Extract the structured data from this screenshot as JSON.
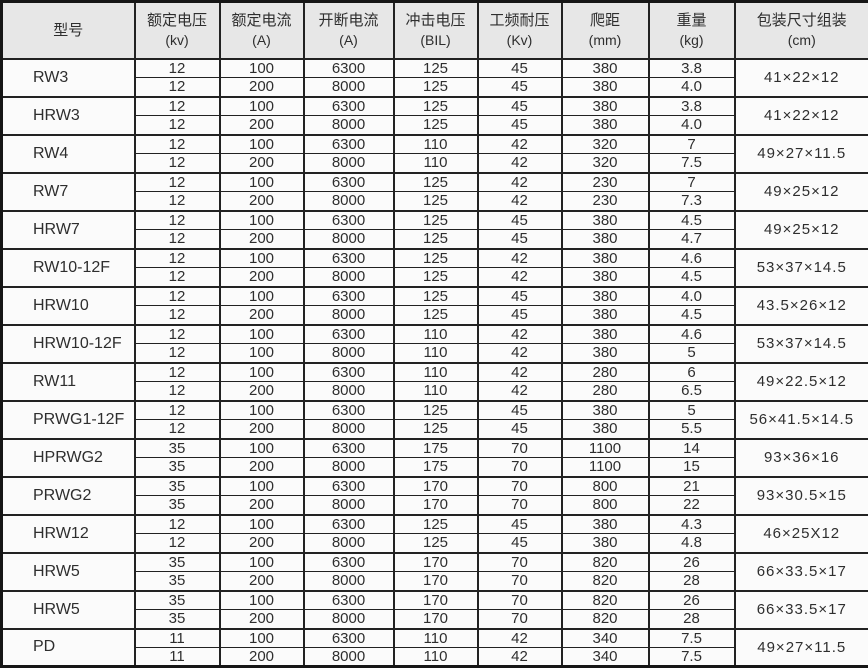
{
  "table": {
    "headers": [
      {
        "title": "型号",
        "unit": ""
      },
      {
        "title": "额定电压",
        "unit": "(kv)"
      },
      {
        "title": "额定电流",
        "unit": "(A)"
      },
      {
        "title": "开断电流",
        "unit": "(A)"
      },
      {
        "title": "冲击电压",
        "unit": "(BIL)"
      },
      {
        "title": "工频耐压",
        "unit": "(Kv)"
      },
      {
        "title": "爬距",
        "unit": "(mm)"
      },
      {
        "title": "重量",
        "unit": "(kg)"
      },
      {
        "title": "包装尺寸组装",
        "unit": "(cm)"
      }
    ],
    "groups": [
      {
        "model": "RW3",
        "rows": [
          [
            "12",
            "100",
            "6300",
            "125",
            "45",
            "380",
            "3.8"
          ],
          [
            "12",
            "200",
            "8000",
            "125",
            "45",
            "380",
            "4.0"
          ]
        ],
        "package": "41×22×12"
      },
      {
        "model": "HRW3",
        "rows": [
          [
            "12",
            "100",
            "6300",
            "125",
            "45",
            "380",
            "3.8"
          ],
          [
            "12",
            "200",
            "8000",
            "125",
            "45",
            "380",
            "4.0"
          ]
        ],
        "package": "41×22×12"
      },
      {
        "model": "RW4",
        "rows": [
          [
            "12",
            "100",
            "6300",
            "110",
            "42",
            "320",
            "7"
          ],
          [
            "12",
            "200",
            "8000",
            "110",
            "42",
            "320",
            "7.5"
          ]
        ],
        "package": "49×27×11.5"
      },
      {
        "model": "RW7",
        "rows": [
          [
            "12",
            "100",
            "6300",
            "125",
            "42",
            "230",
            "7"
          ],
          [
            "12",
            "200",
            "8000",
            "125",
            "42",
            "230",
            "7.3"
          ]
        ],
        "package": "49×25×12"
      },
      {
        "model": "HRW7",
        "rows": [
          [
            "12",
            "100",
            "6300",
            "125",
            "45",
            "380",
            "4.5"
          ],
          [
            "12",
            "200",
            "8000",
            "125",
            "45",
            "380",
            "4.7"
          ]
        ],
        "package": "49×25×12"
      },
      {
        "model": "RW10-12F",
        "rows": [
          [
            "12",
            "100",
            "6300",
            "125",
            "42",
            "380",
            "4.6"
          ],
          [
            "12",
            "200",
            "8000",
            "125",
            "42",
            "380",
            "4.5"
          ]
        ],
        "package": "53×37×14.5"
      },
      {
        "model": "HRW10",
        "rows": [
          [
            "12",
            "100",
            "6300",
            "125",
            "45",
            "380",
            "4.0"
          ],
          [
            "12",
            "200",
            "8000",
            "125",
            "45",
            "380",
            "4.5"
          ]
        ],
        "package": "43.5×26×12"
      },
      {
        "model": "HRW10-12F",
        "rows": [
          [
            "12",
            "100",
            "6300",
            "110",
            "42",
            "380",
            "4.6"
          ],
          [
            "12",
            "100",
            "8000",
            "110",
            "42",
            "380",
            "5"
          ]
        ],
        "package": "53×37×14.5"
      },
      {
        "model": "RW11",
        "rows": [
          [
            "12",
            "100",
            "6300",
            "110",
            "42",
            "280",
            "6"
          ],
          [
            "12",
            "200",
            "8000",
            "110",
            "42",
            "280",
            "6.5"
          ]
        ],
        "package": "49×22.5×12"
      },
      {
        "model": "PRWG1-12F",
        "rows": [
          [
            "12",
            "100",
            "6300",
            "125",
            "45",
            "380",
            "5"
          ],
          [
            "12",
            "200",
            "8000",
            "125",
            "45",
            "380",
            "5.5"
          ]
        ],
        "package": "56×41.5×14.5"
      },
      {
        "model": "HPRWG2",
        "rows": [
          [
            "35",
            "100",
            "6300",
            "175",
            "70",
            "1100",
            "14"
          ],
          [
            "35",
            "200",
            "8000",
            "175",
            "70",
            "1100",
            "15"
          ]
        ],
        "package": "93×36×16"
      },
      {
        "model": "PRWG2",
        "rows": [
          [
            "35",
            "100",
            "6300",
            "170",
            "70",
            "800",
            "21"
          ],
          [
            "35",
            "200",
            "8000",
            "170",
            "70",
            "800",
            "22"
          ]
        ],
        "package": "93×30.5×15"
      },
      {
        "model": "HRW12",
        "rows": [
          [
            "12",
            "100",
            "6300",
            "125",
            "45",
            "380",
            "4.3"
          ],
          [
            "12",
            "200",
            "8000",
            "125",
            "45",
            "380",
            "4.8"
          ]
        ],
        "package": "46×25X12"
      },
      {
        "model": "HRW5",
        "rows": [
          [
            "35",
            "100",
            "6300",
            "170",
            "70",
            "820",
            "26"
          ],
          [
            "35",
            "200",
            "8000",
            "170",
            "70",
            "820",
            "28"
          ]
        ],
        "package": "66×33.5×17"
      },
      {
        "model": "HRW5",
        "rows": [
          [
            "35",
            "100",
            "6300",
            "170",
            "70",
            "820",
            "26"
          ],
          [
            "35",
            "200",
            "8000",
            "170",
            "70",
            "820",
            "28"
          ]
        ],
        "package": "66×33.5×17"
      },
      {
        "model": "PD",
        "rows": [
          [
            "11",
            "100",
            "6300",
            "110",
            "42",
            "340",
            "7.5"
          ],
          [
            "11",
            "200",
            "8000",
            "110",
            "42",
            "340",
            "7.5"
          ]
        ],
        "package": "49×27×11.5"
      }
    ]
  },
  "colors": {
    "header_bg": "#e7e7e7",
    "cell_bg": "#fbfbfb",
    "border": "#222222",
    "text": "#2e2e2e"
  }
}
